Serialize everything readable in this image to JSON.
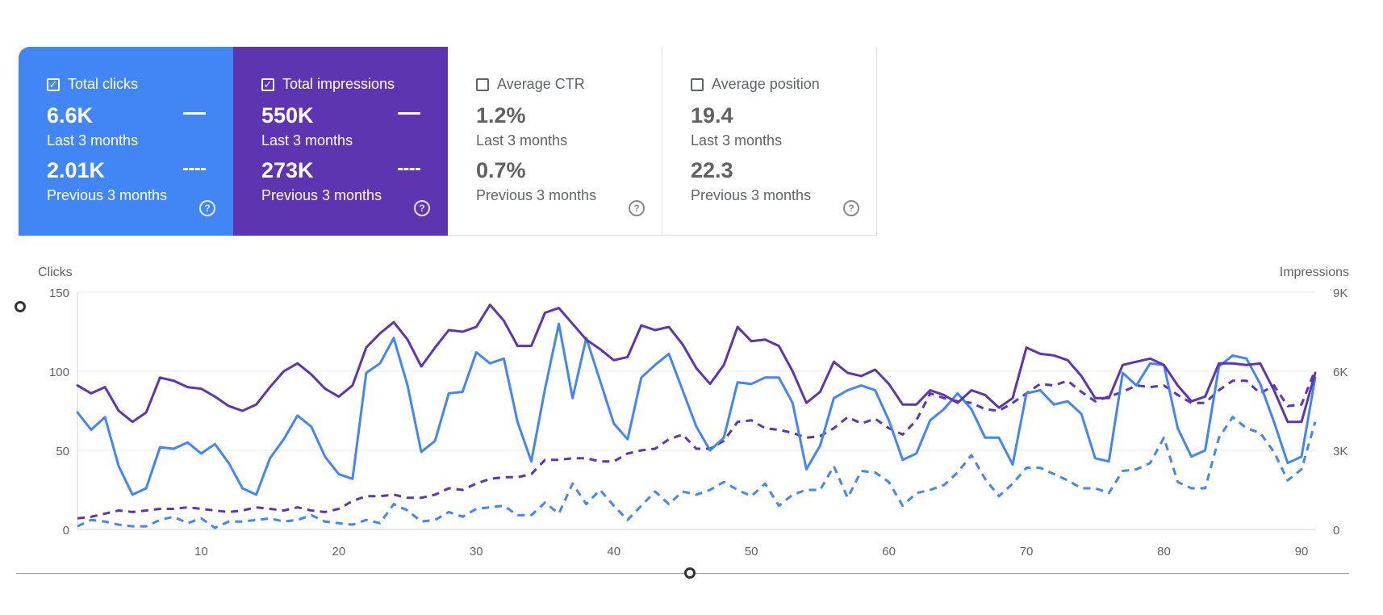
{
  "cards": [
    {
      "title": "Total clicks",
      "checked": true,
      "value_current": "6.6K",
      "label_current": "Last 3 months",
      "value_previous": "2.01K",
      "label_previous": "Previous 3 months"
    },
    {
      "title": "Total impressions",
      "checked": true,
      "value_current": "550K",
      "label_current": "Last 3 months",
      "value_previous": "273K",
      "label_previous": "Previous 3 months"
    },
    {
      "title": "Average CTR",
      "checked": false,
      "value_current": "1.2%",
      "label_current": "Last 3 months",
      "value_previous": "0.7%",
      "label_previous": "Previous 3 months"
    },
    {
      "title": "Average position",
      "checked": false,
      "value_current": "19.4",
      "label_current": "Last 3 months",
      "value_previous": "22.3",
      "label_previous": "Previous 3 months"
    }
  ],
  "colors": {
    "clicks": "#4285f4",
    "impressions": "#5e35b1",
    "grid": "#e8e8e8",
    "axis_text": "#616161"
  },
  "chart_data": {
    "type": "line",
    "left_axis_label": "Clicks",
    "right_axis_label": "Impressions",
    "ylim_left": [
      0,
      150
    ],
    "ylim_right": [
      0,
      9000
    ],
    "yticks_left": [
      "0",
      "50",
      "100",
      "150"
    ],
    "yticks_right": [
      "0",
      "3K",
      "6K",
      "9K"
    ],
    "xlim": [
      1,
      91
    ],
    "xticks": [
      10,
      20,
      30,
      40,
      50,
      60,
      70,
      80,
      90
    ],
    "grid": true,
    "series": [
      {
        "role": "clicks-current",
        "axis": "left",
        "style": "solid",
        "color": "#4285f4",
        "values": [
          74,
          63,
          71,
          40,
          22,
          26,
          52,
          51,
          55,
          48,
          54,
          42,
          26,
          22,
          45,
          57,
          72,
          65,
          46,
          35,
          32,
          99,
          105,
          121,
          91,
          49,
          56,
          86,
          87,
          112,
          105,
          108,
          68,
          43,
          89,
          130,
          83,
          121,
          94,
          67,
          57,
          96,
          104,
          111,
          88,
          65,
          50,
          58,
          93,
          92,
          96,
          96,
          80,
          38,
          53,
          83,
          88,
          91,
          88,
          69,
          44,
          48,
          69,
          76,
          86,
          76,
          58,
          58,
          41,
          86,
          88,
          79,
          81,
          73,
          45,
          43,
          99,
          91,
          105,
          104,
          64,
          46,
          50,
          103,
          110,
          108,
          92,
          68,
          42,
          46,
          96
        ]
      },
      {
        "role": "impressions-current",
        "axis": "right",
        "style": "solid",
        "color": "#5e35b1",
        "values": [
          5460,
          5160,
          5400,
          4500,
          4080,
          4440,
          5760,
          5640,
          5400,
          5340,
          5040,
          4680,
          4500,
          4740,
          5400,
          6000,
          6300,
          5880,
          5340,
          5040,
          5460,
          6900,
          7440,
          7860,
          7200,
          6180,
          6900,
          7560,
          7500,
          7680,
          8520,
          7920,
          6960,
          6960,
          8220,
          8400,
          7800,
          7200,
          6840,
          6420,
          6540,
          7740,
          7560,
          7680,
          7020,
          6120,
          5520,
          6240,
          7680,
          7140,
          7200,
          6960,
          6000,
          4800,
          5220,
          6360,
          5940,
          5820,
          6060,
          5520,
          4740,
          4740,
          5280,
          5100,
          4800,
          5280,
          5100,
          4620,
          4980,
          6900,
          6660,
          6600,
          6420,
          5820,
          4980,
          4980,
          6240,
          6360,
          6480,
          6240,
          5460,
          4860,
          5040,
          6300,
          6300,
          6240,
          6300,
          5280,
          4080,
          4080,
          5940
        ]
      },
      {
        "role": "clicks-previous",
        "axis": "left",
        "style": "dashed",
        "color": "#4285f4",
        "values": [
          2,
          6,
          5,
          3,
          2,
          2,
          6,
          8,
          4,
          7,
          1,
          5,
          5,
          6,
          7,
          5,
          6,
          9,
          5,
          4,
          3,
          6,
          4,
          16,
          12,
          5,
          6,
          11,
          8,
          13,
          14,
          15,
          9,
          9,
          17,
          10,
          29,
          16,
          25,
          15,
          6,
          15,
          24,
          16,
          24,
          22,
          25,
          30,
          25,
          21,
          29,
          15,
          22,
          25,
          25,
          40,
          20,
          37,
          36,
          30,
          15,
          23,
          25,
          28,
          36,
          47,
          32,
          21,
          29,
          39,
          39,
          35,
          31,
          26,
          26,
          23,
          37,
          38,
          42,
          58,
          30,
          26,
          26,
          58,
          71,
          64,
          61,
          49,
          31,
          38,
          68
        ]
      },
      {
        "role": "impressions-previous",
        "axis": "right",
        "style": "dashed",
        "color": "#5e35b1",
        "values": [
          420,
          480,
          600,
          720,
          660,
          720,
          780,
          780,
          840,
          780,
          720,
          660,
          720,
          840,
          780,
          720,
          840,
          720,
          660,
          780,
          1080,
          1260,
          1260,
          1320,
          1200,
          1200,
          1320,
          1560,
          1500,
          1740,
          1920,
          1980,
          1980,
          2100,
          2640,
          2640,
          2700,
          2700,
          2580,
          2580,
          2880,
          3000,
          3060,
          3420,
          3600,
          3060,
          3060,
          3360,
          4080,
          4140,
          3840,
          3780,
          3660,
          3480,
          3540,
          3840,
          4260,
          4020,
          4200,
          3840,
          3600,
          4140,
          5160,
          4980,
          4860,
          4800,
          4560,
          4500,
          4800,
          5160,
          5520,
          5460,
          5640,
          5220,
          4860,
          5040,
          5220,
          5460,
          5400,
          5460,
          5100,
          4800,
          4800,
          5280,
          5640,
          5640,
          5160,
          5460,
          4680,
          4740,
          6060
        ]
      }
    ]
  }
}
